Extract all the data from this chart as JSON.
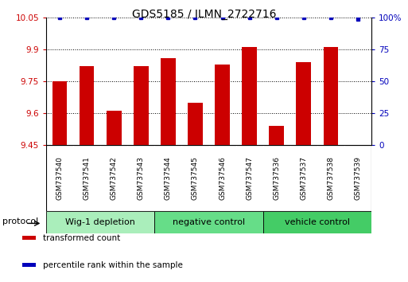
{
  "title": "GDS5185 / ILMN_2722716",
  "samples": [
    "GSM737540",
    "GSM737541",
    "GSM737542",
    "GSM737543",
    "GSM737544",
    "GSM737545",
    "GSM737546",
    "GSM737547",
    "GSM737536",
    "GSM737537",
    "GSM737538",
    "GSM737539"
  ],
  "bar_values": [
    9.75,
    9.82,
    9.61,
    9.82,
    9.86,
    9.65,
    9.83,
    9.91,
    9.54,
    9.84,
    9.91,
    9.45
  ],
  "percentile_values": [
    100,
    100,
    100,
    100,
    100,
    100,
    100,
    100,
    100,
    100,
    100,
    99
  ],
  "ylim": [
    9.45,
    10.05
  ],
  "y_ticks": [
    9.45,
    9.6,
    9.75,
    9.9,
    10.05
  ],
  "y_tick_labels": [
    "9.45",
    "9.6",
    "9.75",
    "9.9",
    "10.05"
  ],
  "right_yticks": [
    0,
    25,
    50,
    75,
    100
  ],
  "right_ytick_labels": [
    "0",
    "25",
    "50",
    "75",
    "100%"
  ],
  "bar_color": "#CC0000",
  "percentile_color": "#0000BB",
  "groups": [
    {
      "label": "Wig-1 depletion",
      "start": 0,
      "end": 4,
      "color": "#AAEEBB"
    },
    {
      "label": "negative control",
      "start": 4,
      "end": 8,
      "color": "#66DD88"
    },
    {
      "label": "vehicle control",
      "start": 8,
      "end": 12,
      "color": "#44CC66"
    }
  ],
  "protocol_label": "protocol",
  "legend_items": [
    {
      "label": "transformed count",
      "color": "#CC0000"
    },
    {
      "label": "percentile rank within the sample",
      "color": "#0000BB"
    }
  ],
  "tick_label_color_left": "#CC0000",
  "tick_label_color_right": "#0000BB",
  "xtick_bg_color": "#C8C8C8",
  "plot_bg_color": "#FFFFFF"
}
